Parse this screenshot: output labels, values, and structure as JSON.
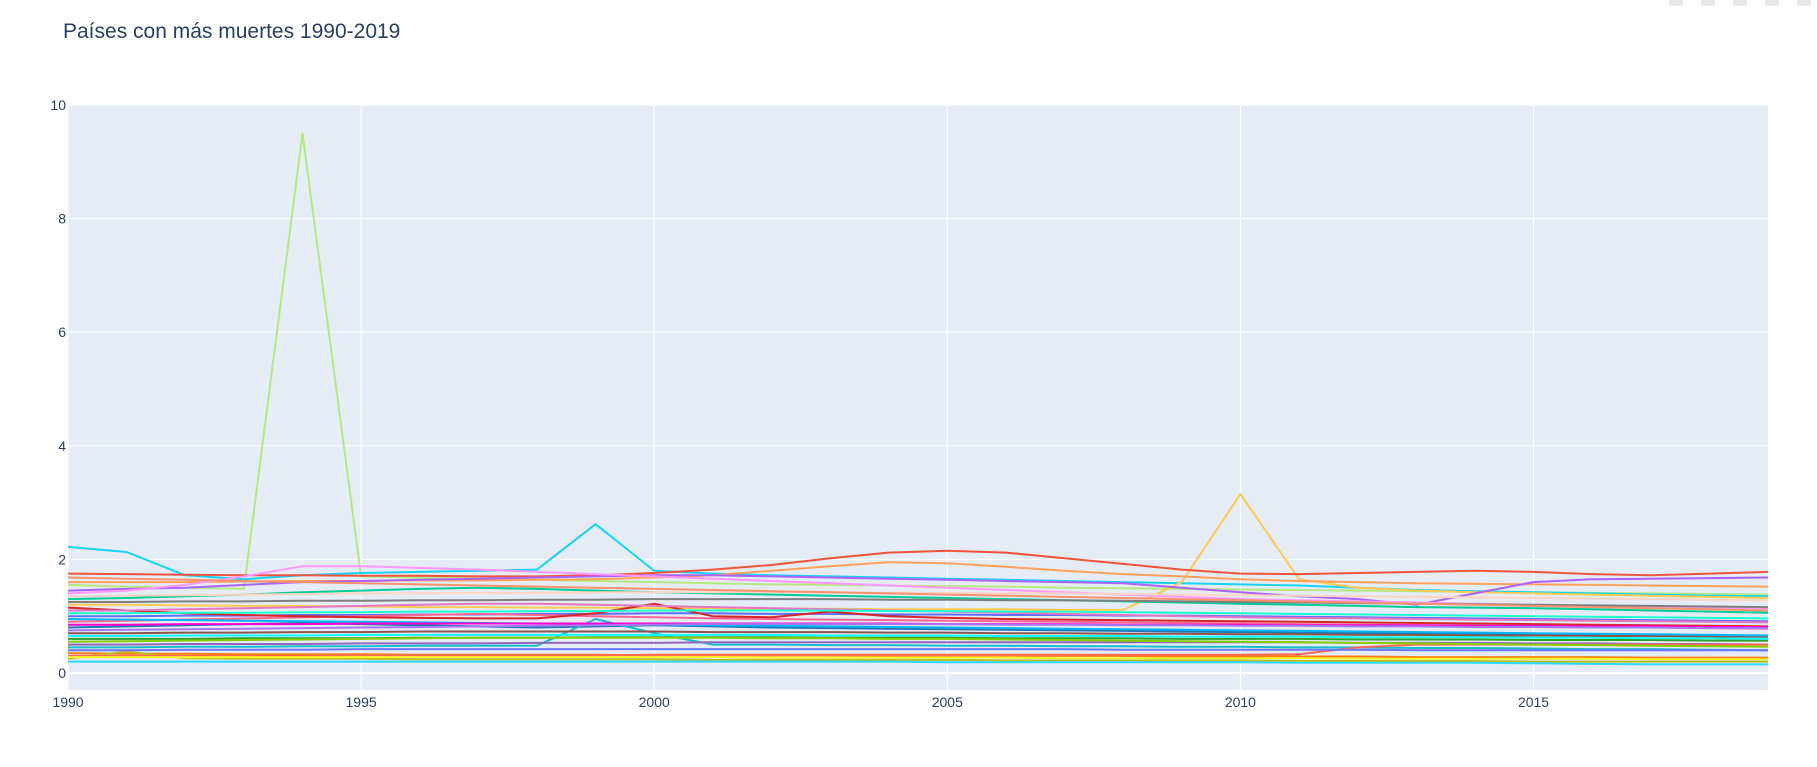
{
  "chart_data": {
    "type": "line",
    "title": "Países con más muertes 1990-2019",
    "xlabel": "",
    "ylabel": "",
    "xlim": [
      1990,
      2019
    ],
    "ylim": [
      -0.3,
      10
    ],
    "x_ticks": [
      1990,
      1995,
      2000,
      2005,
      2010,
      2015
    ],
    "y_ticks": [
      0,
      2,
      4,
      6,
      8,
      10
    ],
    "grid": true,
    "legend": "none",
    "x": [
      1990,
      1991,
      1992,
      1993,
      1994,
      1995,
      1996,
      1997,
      1998,
      1999,
      2000,
      2001,
      2002,
      2003,
      2004,
      2005,
      2006,
      2007,
      2008,
      2009,
      2010,
      2011,
      2012,
      2013,
      2014,
      2015,
      2016,
      2017,
      2018,
      2019
    ],
    "series": [
      {
        "color": "#B6E880",
        "values": [
          1.55,
          1.52,
          1.5,
          1.48,
          9.5,
          1.7,
          1.68,
          1.66,
          1.64,
          1.62,
          1.6,
          1.58,
          1.56,
          1.55,
          1.54,
          1.53,
          1.52,
          1.5,
          1.49,
          1.48,
          1.47,
          1.46,
          1.45,
          1.44,
          1.43,
          1.42,
          1.41,
          1.4,
          1.39,
          1.38
        ]
      },
      {
        "color": "#19D3F3",
        "values": [
          2.22,
          2.13,
          1.72,
          1.65,
          1.72,
          1.76,
          1.78,
          1.8,
          1.82,
          2.62,
          1.8,
          1.75,
          1.72,
          1.7,
          1.68,
          1.66,
          1.64,
          1.62,
          1.6,
          1.58,
          1.56,
          1.54,
          1.5,
          1.46,
          1.44,
          1.42,
          1.4,
          1.38,
          1.36,
          1.35
        ]
      },
      {
        "color": "#FECB52",
        "values": [
          1.2,
          1.2,
          1.19,
          1.18,
          1.18,
          1.17,
          1.16,
          1.16,
          1.15,
          1.15,
          1.14,
          1.14,
          1.13,
          1.13,
          1.12,
          1.12,
          1.12,
          1.11,
          1.11,
          1.6,
          3.15,
          1.65,
          1.5,
          1.45,
          1.42,
          1.4,
          1.38,
          1.36,
          1.34,
          1.32
        ]
      },
      {
        "color": "#EF553B",
        "values": [
          1.75,
          1.74,
          1.73,
          1.72,
          1.72,
          1.71,
          1.71,
          1.7,
          1.7,
          1.72,
          1.76,
          1.82,
          1.9,
          2.02,
          2.12,
          2.15,
          2.12,
          2.02,
          1.92,
          1.82,
          1.75,
          1.74,
          1.76,
          1.78,
          1.8,
          1.78,
          1.74,
          1.72,
          1.75,
          1.78
        ]
      },
      {
        "color": "#FFA15A",
        "values": [
          1.6,
          1.6,
          1.6,
          1.61,
          1.62,
          1.62,
          1.63,
          1.63,
          1.64,
          1.65,
          1.68,
          1.72,
          1.8,
          1.88,
          1.95,
          1.93,
          1.87,
          1.8,
          1.74,
          1.7,
          1.65,
          1.62,
          1.6,
          1.58,
          1.57,
          1.56,
          1.55,
          1.54,
          1.53,
          1.52
        ]
      },
      {
        "color": "#AB63FA",
        "values": [
          1.45,
          1.48,
          1.5,
          1.55,
          1.6,
          1.62,
          1.64,
          1.66,
          1.68,
          1.7,
          1.72,
          1.72,
          1.7,
          1.68,
          1.66,
          1.64,
          1.62,
          1.6,
          1.58,
          1.5,
          1.42,
          1.35,
          1.3,
          1.2,
          1.4,
          1.6,
          1.65,
          1.66,
          1.67,
          1.68
        ]
      },
      {
        "color": "#FF97FF",
        "values": [
          1.4,
          1.45,
          1.55,
          1.7,
          1.88,
          1.88,
          1.85,
          1.82,
          1.78,
          1.74,
          1.7,
          1.66,
          1.62,
          1.58,
          1.54,
          1.5,
          1.46,
          1.42,
          1.38,
          1.34,
          1.3,
          1.28,
          1.26,
          1.24,
          1.22,
          1.2,
          1.18,
          1.16,
          1.15,
          1.14
        ]
      },
      {
        "color": "#00CC96",
        "values": [
          1.3,
          1.32,
          1.35,
          1.38,
          1.42,
          1.45,
          1.48,
          1.5,
          1.48,
          1.45,
          1.42,
          1.4,
          1.38,
          1.36,
          1.34,
          1.32,
          1.3,
          1.28,
          1.26,
          1.24,
          1.22,
          1.2,
          1.18,
          1.16,
          1.15,
          1.14,
          1.12,
          1.1,
          1.08,
          1.06
        ]
      },
      {
        "color": "#636EFA",
        "values": [
          1.0,
          1.0,
          1.01,
          1.01,
          1.02,
          1.02,
          1.03,
          1.03,
          1.04,
          1.04,
          1.05,
          1.05,
          1.04,
          1.04,
          1.03,
          1.03,
          1.02,
          1.02,
          1.01,
          1.01,
          1.0,
          0.99,
          0.98,
          0.97,
          0.96,
          0.95,
          0.94,
          0.93,
          0.92,
          0.91
        ]
      },
      {
        "color": "#FF6692",
        "values": [
          0.9,
          0.92,
          0.94,
          0.96,
          0.98,
          1.0,
          1.02,
          1.04,
          1.02,
          1.0,
          0.98,
          0.96,
          0.95,
          0.94,
          0.93,
          0.92,
          0.91,
          0.9,
          0.89,
          0.88,
          0.87,
          0.86,
          0.85,
          0.84,
          0.83,
          0.82,
          0.81,
          0.8,
          0.79,
          0.78
        ]
      },
      {
        "color": "#D62728",
        "values": [
          1.15,
          1.1,
          1.05,
          1.02,
          1.0,
          0.98,
          0.97,
          0.96,
          0.96,
          1.05,
          1.22,
          1.0,
          0.98,
          1.08,
          1.0,
          0.97,
          0.95,
          0.94,
          0.93,
          0.92,
          0.91,
          0.9,
          0.89,
          0.88,
          0.87,
          0.86,
          0.85,
          0.84,
          0.83,
          0.82
        ]
      },
      {
        "color": "#2CA02C",
        "values": [
          0.6,
          0.6,
          0.6,
          0.61,
          0.61,
          0.61,
          0.62,
          0.62,
          0.62,
          0.63,
          0.63,
          0.63,
          0.63,
          0.62,
          0.62,
          0.62,
          0.61,
          0.61,
          0.61,
          0.6,
          0.6,
          0.6,
          0.59,
          0.59,
          0.59,
          0.58,
          0.58,
          0.58,
          0.57,
          0.57
        ]
      },
      {
        "color": "#1F77B4",
        "values": [
          0.8,
          0.82,
          0.84,
          0.86,
          0.88,
          0.86,
          0.84,
          0.82,
          0.8,
          0.82,
          0.84,
          0.82,
          0.8,
          0.79,
          0.78,
          0.77,
          0.76,
          0.75,
          0.74,
          0.73,
          0.72,
          0.71,
          0.7,
          0.7,
          0.69,
          0.68,
          0.67,
          0.66,
          0.65,
          0.64
        ]
      },
      {
        "color": "#17BECF",
        "values": [
          0.45,
          0.45,
          0.46,
          0.46,
          0.47,
          0.47,
          0.48,
          0.48,
          0.48,
          0.95,
          0.7,
          0.5,
          0.5,
          0.49,
          0.49,
          0.48,
          0.48,
          0.47,
          0.47,
          0.46,
          0.46,
          0.45,
          0.45,
          0.44,
          0.44,
          0.43,
          0.42,
          0.42,
          0.41,
          0.4
        ]
      },
      {
        "color": "#FF7F0E",
        "values": [
          0.35,
          0.34,
          0.34,
          0.33,
          0.33,
          0.33,
          0.32,
          0.32,
          0.32,
          0.32,
          0.31,
          0.31,
          0.31,
          0.31,
          0.3,
          0.3,
          0.3,
          0.3,
          0.3,
          0.29,
          0.29,
          0.29,
          0.29,
          0.28,
          0.28,
          0.28,
          0.28,
          0.27,
          0.27,
          0.27
        ]
      },
      {
        "color": "#BCBD22",
        "values": [
          0.25,
          0.38,
          0.26,
          0.25,
          0.25,
          0.25,
          0.24,
          0.24,
          0.24,
          0.24,
          0.24,
          0.23,
          0.23,
          0.23,
          0.23,
          0.23,
          0.22,
          0.22,
          0.22,
          0.22,
          0.22,
          0.21,
          0.21,
          0.21,
          0.21,
          0.2,
          0.2,
          0.2,
          0.2,
          0.2
        ]
      },
      {
        "color": "#9467BD",
        "values": [
          0.5,
          0.5,
          0.51,
          0.51,
          0.51,
          0.52,
          0.52,
          0.52,
          0.53,
          0.53,
          0.53,
          0.54,
          0.54,
          0.54,
          0.54,
          0.54,
          0.54,
          0.54,
          0.54,
          0.54,
          0.54,
          0.54,
          0.53,
          0.53,
          0.53,
          0.52,
          0.52,
          0.51,
          0.51,
          0.5
        ]
      },
      {
        "color": "#E377C2",
        "values": [
          1.1,
          1.1,
          1.12,
          1.14,
          1.16,
          1.18,
          1.2,
          1.22,
          1.22,
          1.2,
          1.18,
          1.16,
          1.14,
          1.12,
          1.1,
          1.08,
          1.06,
          1.04,
          1.02,
          1.0,
          0.98,
          0.97,
          0.96,
          0.95,
          0.94,
          0.93,
          0.92,
          0.91,
          0.9,
          0.89
        ]
      },
      {
        "color": "#8C564B",
        "values": [
          0.7,
          0.7,
          0.71,
          0.71,
          0.72,
          0.72,
          0.73,
          0.73,
          0.73,
          0.73,
          0.73,
          0.72,
          0.72,
          0.72,
          0.71,
          0.71,
          0.7,
          0.7,
          0.69,
          0.69,
          0.68,
          0.68,
          0.67,
          0.67,
          0.66,
          0.66,
          0.65,
          0.65,
          0.64,
          0.64
        ]
      },
      {
        "color": "#7F7F7F",
        "values": [
          1.25,
          1.25,
          1.26,
          1.26,
          1.27,
          1.27,
          1.28,
          1.28,
          1.29,
          1.29,
          1.3,
          1.3,
          1.3,
          1.3,
          1.29,
          1.29,
          1.28,
          1.28,
          1.27,
          1.26,
          1.25,
          1.24,
          1.23,
          1.22,
          1.21,
          1.2,
          1.19,
          1.18,
          1.17,
          1.16
        ]
      },
      {
        "color": "#00B5F7",
        "values": [
          0.95,
          0.94,
          0.93,
          0.92,
          0.91,
          0.9,
          0.89,
          0.88,
          0.87,
          0.86,
          0.85,
          0.84,
          0.83,
          0.82,
          0.81,
          0.8,
          0.79,
          0.78,
          0.77,
          0.76,
          0.75,
          0.74,
          0.73,
          0.72,
          0.71,
          0.7,
          0.69,
          0.68,
          0.67,
          0.66
        ]
      },
      {
        "color": "#FC6955",
        "values": [
          0.3,
          0.3,
          0.3,
          0.3,
          0.3,
          0.31,
          0.31,
          0.31,
          0.31,
          0.31,
          0.32,
          0.32,
          0.32,
          0.32,
          0.32,
          0.32,
          0.32,
          0.32,
          0.32,
          0.32,
          0.32,
          0.33,
          0.45,
          0.5,
          0.5,
          0.5,
          0.5,
          0.5,
          0.5,
          0.5
        ]
      },
      {
        "color": "#6A76FC",
        "values": [
          0.4,
          0.4,
          0.41,
          0.41,
          0.41,
          0.42,
          0.42,
          0.42,
          0.42,
          0.42,
          0.42,
          0.42,
          0.42,
          0.42,
          0.42,
          0.42,
          0.42,
          0.42,
          0.41,
          0.41,
          0.41,
          0.41,
          0.41,
          0.4,
          0.4,
          0.4,
          0.4,
          0.4,
          0.4,
          0.4
        ]
      },
      {
        "color": "#2ED9FF",
        "values": [
          0.2,
          0.2,
          0.2,
          0.2,
          0.2,
          0.2,
          0.2,
          0.2,
          0.2,
          0.2,
          0.2,
          0.2,
          0.2,
          0.2,
          0.2,
          0.19,
          0.19,
          0.19,
          0.19,
          0.19,
          0.19,
          0.18,
          0.18,
          0.18,
          0.18,
          0.17,
          0.16,
          0.15,
          0.15,
          0.15
        ]
      },
      {
        "color": "#FED4C4",
        "values": [
          1.35,
          1.36,
          1.37,
          1.38,
          1.39,
          1.4,
          1.4,
          1.41,
          1.41,
          1.42,
          1.42,
          1.42,
          1.42,
          1.42,
          1.41,
          1.41,
          1.4,
          1.4,
          1.39,
          1.38,
          1.37,
          1.36,
          1.35,
          1.34,
          1.33,
          1.32,
          1.31,
          1.3,
          1.29,
          1.28
        ]
      },
      {
        "color": "#86CE00",
        "values": [
          0.55,
          0.56,
          0.57,
          0.58,
          0.59,
          0.6,
          0.61,
          0.62,
          0.62,
          0.62,
          0.62,
          0.62,
          0.61,
          0.61,
          0.6,
          0.6,
          0.59,
          0.58,
          0.57,
          0.56,
          0.55,
          0.54,
          0.53,
          0.52,
          0.51,
          0.5,
          0.49,
          0.48,
          0.47,
          0.46
        ]
      },
      {
        "color": "#FE00CE",
        "values": [
          0.85,
          0.85,
          0.86,
          0.86,
          0.86,
          0.87,
          0.87,
          0.87,
          0.87,
          0.87,
          0.87,
          0.87,
          0.87,
          0.87,
          0.87,
          0.86,
          0.86,
          0.86,
          0.85,
          0.85,
          0.85,
          0.84,
          0.84,
          0.84,
          0.83,
          0.83,
          0.82,
          0.82,
          0.81,
          0.81
        ]
      },
      {
        "color": "#F6926E",
        "values": [
          1.68,
          1.66,
          1.64,
          1.62,
          1.6,
          1.58,
          1.56,
          1.54,
          1.52,
          1.5,
          1.48,
          1.46,
          1.44,
          1.42,
          1.4,
          1.38,
          1.36,
          1.34,
          1.32,
          1.3,
          1.28,
          1.26,
          1.24,
          1.22,
          1.2,
          1.18,
          1.16,
          1.14,
          1.12,
          1.1
        ]
      },
      {
        "color": "#0DF9FF",
        "values": [
          0.65,
          0.65,
          0.66,
          0.66,
          0.66,
          0.67,
          0.67,
          0.67,
          0.67,
          0.67,
          0.67,
          0.67,
          0.67,
          0.66,
          0.66,
          0.66,
          0.65,
          0.65,
          0.65,
          0.64,
          0.64,
          0.64,
          0.63,
          0.63,
          0.63,
          0.62,
          0.62,
          0.61,
          0.61,
          0.6
        ]
      },
      {
        "color": "#F6F926",
        "values": [
          0.28,
          0.28,
          0.28,
          0.28,
          0.28,
          0.28,
          0.28,
          0.28,
          0.28,
          0.28,
          0.28,
          0.28,
          0.27,
          0.27,
          0.27,
          0.27,
          0.27,
          0.26,
          0.26,
          0.26,
          0.26,
          0.26,
          0.25,
          0.25,
          0.25,
          0.25,
          0.25,
          0.24,
          0.24,
          0.24
        ]
      },
      {
        "color": "#A777F1",
        "values": [
          0.75,
          0.76,
          0.77,
          0.78,
          0.79,
          0.8,
          0.81,
          0.82,
          0.83,
          0.84,
          0.85,
          0.86,
          0.86,
          0.86,
          0.86,
          0.86,
          0.85,
          0.85,
          0.84,
          0.84,
          0.83,
          0.83,
          0.82,
          0.82,
          0.81,
          0.81,
          0.8,
          0.8,
          0.79,
          0.79
        ]
      },
      {
        "color": "#1CFFCE",
        "values": [
          1.05,
          1.05,
          1.06,
          1.06,
          1.07,
          1.07,
          1.08,
          1.08,
          1.09,
          1.09,
          1.1,
          1.1,
          1.1,
          1.1,
          1.09,
          1.09,
          1.08,
          1.08,
          1.07,
          1.06,
          1.05,
          1.04,
          1.03,
          1.02,
          1.01,
          1.0,
          0.99,
          0.98,
          0.97,
          0.96
        ]
      }
    ]
  }
}
